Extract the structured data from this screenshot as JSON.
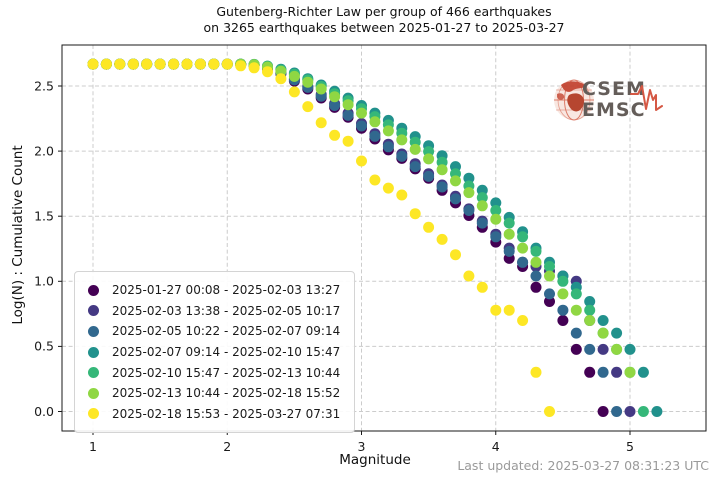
{
  "title": {
    "line1": "Gutenberg-Richter Law per group of 466 earthquakes",
    "line2": "on 3265 earthquakes between 2025-01-27 to 2025-03-27"
  },
  "axes": {
    "xlabel": "Magnitude",
    "ylabel": "Log(N) : Cumulative Count"
  },
  "footer": {
    "last_updated": "Last updated: 2025-03-27 08:31:23 UTC"
  },
  "logo": {
    "top": "CSEM",
    "bottom": "EMSC",
    "accent_color": "#d24a35",
    "text_color": "#57504c"
  },
  "chart_data": {
    "type": "scatter",
    "title": "Gutenberg-Richter Law per group of 466 earthquakes on 3265 earthquakes between 2025-01-27 to 2025-03-27",
    "xlabel": "Magnitude",
    "ylabel": "Log(N) : Cumulative Count",
    "xlim": [
      0.77,
      5.57
    ],
    "ylim": [
      -0.15,
      2.82
    ],
    "x_ticks": [
      1,
      2,
      3,
      4,
      5
    ],
    "y_ticks": [
      0.0,
      0.5,
      1.0,
      1.5,
      2.0,
      2.5
    ],
    "grid": true,
    "legend_position": "lower left",
    "marker_diameter_px": 11,
    "group_size": 466,
    "log10_group_size": 2.668,
    "series": [
      {
        "label": "2025-01-27 00:08 - 2025-02-03 13:27",
        "color": "#440154",
        "flat": {
          "from": 1.0,
          "to": 2.0,
          "step": 0.1,
          "value": 2.668
        },
        "points": [
          [
            2.1,
            2.667
          ],
          [
            2.2,
            2.658
          ],
          [
            2.3,
            2.633
          ],
          [
            2.4,
            2.593
          ],
          [
            2.5,
            2.538
          ],
          [
            2.6,
            2.477
          ],
          [
            2.7,
            2.408
          ],
          [
            2.8,
            2.336
          ],
          [
            2.9,
            2.26
          ],
          [
            3.0,
            2.176
          ],
          [
            3.1,
            2.093
          ],
          [
            3.2,
            2.009
          ],
          [
            3.3,
            1.944
          ],
          [
            3.4,
            1.863
          ],
          [
            3.5,
            1.792
          ],
          [
            3.6,
            1.699
          ],
          [
            3.7,
            1.602
          ],
          [
            3.8,
            1.505
          ],
          [
            3.9,
            1.415
          ],
          [
            4.0,
            1.301
          ],
          [
            4.1,
            1.176
          ],
          [
            4.2,
            1.114
          ],
          [
            4.3,
            0.954
          ],
          [
            4.4,
            0.845
          ],
          [
            4.5,
            0.699
          ],
          [
            4.6,
            0.477
          ],
          [
            4.7,
            0.301
          ],
          [
            4.8,
            0.0
          ]
        ]
      },
      {
        "label": "2025-02-03 13:38 - 2025-02-05 10:17",
        "color": "#443983",
        "flat": {
          "from": 1.0,
          "to": 2.0,
          "step": 0.1,
          "value": 2.668
        },
        "points": [
          [
            2.1,
            2.667
          ],
          [
            2.2,
            2.661
          ],
          [
            2.3,
            2.641
          ],
          [
            2.4,
            2.602
          ],
          [
            2.5,
            2.554
          ],
          [
            2.6,
            2.498
          ],
          [
            2.7,
            2.435
          ],
          [
            2.8,
            2.365
          ],
          [
            2.9,
            2.292
          ],
          [
            3.0,
            2.212
          ],
          [
            3.1,
            2.134
          ],
          [
            3.2,
            2.053
          ],
          [
            3.3,
            1.978
          ],
          [
            3.4,
            1.903
          ],
          [
            3.5,
            1.826
          ],
          [
            3.6,
            1.74
          ],
          [
            3.7,
            1.653
          ],
          [
            3.8,
            1.556
          ],
          [
            3.9,
            1.462
          ],
          [
            4.0,
            1.362
          ],
          [
            4.1,
            1.255
          ],
          [
            4.2,
            1.146
          ],
          [
            4.3,
            1.114
          ],
          [
            4.4,
            1.079
          ],
          [
            4.5,
            1.041
          ],
          [
            4.6,
            1.0
          ],
          [
            4.7,
            0.699
          ],
          [
            4.8,
            0.477
          ],
          [
            4.9,
            0.301
          ],
          [
            5.0,
            0.0
          ]
        ]
      },
      {
        "label": "2025-02-05 10:22 - 2025-02-07 09:14",
        "color": "#31688e",
        "flat": {
          "from": 1.0,
          "to": 2.0,
          "step": 0.1,
          "value": 2.668
        },
        "points": [
          [
            2.1,
            2.667
          ],
          [
            2.2,
            2.66
          ],
          [
            2.3,
            2.637
          ],
          [
            2.4,
            2.6
          ],
          [
            2.5,
            2.547
          ],
          [
            2.6,
            2.489
          ],
          [
            2.7,
            2.422
          ],
          [
            2.8,
            2.35
          ],
          [
            2.9,
            2.274
          ],
          [
            3.0,
            2.193
          ],
          [
            3.1,
            2.114
          ],
          [
            3.2,
            2.033
          ],
          [
            3.3,
            1.959
          ],
          [
            3.4,
            1.881
          ],
          [
            3.5,
            1.806
          ],
          [
            3.6,
            1.724
          ],
          [
            3.7,
            1.633
          ],
          [
            3.8,
            1.544
          ],
          [
            3.9,
            1.447
          ],
          [
            4.0,
            1.342
          ],
          [
            4.1,
            1.23
          ],
          [
            4.2,
            1.146
          ],
          [
            4.3,
            1.041
          ],
          [
            4.4,
            0.903
          ],
          [
            4.5,
            0.778
          ],
          [
            4.6,
            0.602
          ],
          [
            4.7,
            0.477
          ],
          [
            4.8,
            0.301
          ],
          [
            4.9,
            0.0
          ]
        ]
      },
      {
        "label": "2025-02-07 09:14 - 2025-02-10 15:47",
        "color": "#21918c",
        "flat": {
          "from": 1.0,
          "to": 2.0,
          "step": 0.1,
          "value": 2.668
        },
        "points": [
          [
            2.1,
            2.668
          ],
          [
            2.2,
            2.665
          ],
          [
            2.3,
            2.653
          ],
          [
            2.4,
            2.628
          ],
          [
            2.5,
            2.6
          ],
          [
            2.6,
            2.556
          ],
          [
            2.7,
            2.508
          ],
          [
            2.8,
            2.459
          ],
          [
            2.9,
            2.407
          ],
          [
            3.0,
            2.35
          ],
          [
            3.1,
            2.292
          ],
          [
            3.2,
            2.236
          ],
          [
            3.3,
            2.176
          ],
          [
            3.4,
            2.111
          ],
          [
            3.5,
            2.041
          ],
          [
            3.6,
            1.964
          ],
          [
            3.7,
            1.881
          ],
          [
            3.8,
            1.792
          ],
          [
            3.9,
            1.699
          ],
          [
            4.0,
            1.602
          ],
          [
            4.1,
            1.491
          ],
          [
            4.2,
            1.38
          ],
          [
            4.3,
            1.255
          ],
          [
            4.4,
            1.146
          ],
          [
            4.5,
            1.041
          ],
          [
            4.6,
            0.954
          ],
          [
            4.7,
            0.845
          ],
          [
            4.8,
            0.699
          ],
          [
            4.9,
            0.602
          ],
          [
            5.0,
            0.477
          ],
          [
            5.1,
            0.301
          ],
          [
            5.2,
            0.0
          ]
        ]
      },
      {
        "label": "2025-02-10 15:47 - 2025-02-13 10:44",
        "color": "#35b779",
        "flat": {
          "from": 1.0,
          "to": 2.0,
          "step": 0.1,
          "value": 2.668
        },
        "points": [
          [
            2.1,
            2.668
          ],
          [
            2.2,
            2.666
          ],
          [
            2.3,
            2.651
          ],
          [
            2.4,
            2.623
          ],
          [
            2.5,
            2.591
          ],
          [
            2.6,
            2.547
          ],
          [
            2.7,
            2.496
          ],
          [
            2.8,
            2.441
          ],
          [
            2.9,
            2.386
          ],
          [
            3.0,
            2.326
          ],
          [
            3.1,
            2.265
          ],
          [
            3.2,
            2.201
          ],
          [
            3.3,
            2.137
          ],
          [
            3.4,
            2.068
          ],
          [
            3.5,
            1.996
          ],
          [
            3.6,
            1.914
          ],
          [
            3.7,
            1.826
          ],
          [
            3.8,
            1.732
          ],
          [
            3.9,
            1.643
          ],
          [
            4.0,
            1.544
          ],
          [
            4.1,
            1.447
          ],
          [
            4.2,
            1.342
          ],
          [
            4.3,
            1.23
          ],
          [
            4.4,
            1.114
          ],
          [
            4.5,
            1.0
          ],
          [
            4.6,
            0.903
          ],
          [
            4.7,
            0.778
          ],
          [
            4.8,
            0.602
          ],
          [
            4.9,
            0.477
          ],
          [
            5.0,
            0.301
          ],
          [
            5.1,
            0.0
          ]
        ]
      },
      {
        "label": "2025-02-13 10:44 - 2025-02-18 15:52",
        "color": "#90d743",
        "flat": {
          "from": 1.0,
          "to": 2.0,
          "step": 0.1,
          "value": 2.668
        },
        "points": [
          [
            2.1,
            2.667
          ],
          [
            2.2,
            2.663
          ],
          [
            2.3,
            2.645
          ],
          [
            2.4,
            2.613
          ],
          [
            2.5,
            2.574
          ],
          [
            2.6,
            2.529
          ],
          [
            2.7,
            2.477
          ],
          [
            2.8,
            2.418
          ],
          [
            2.9,
            2.356
          ],
          [
            3.0,
            2.292
          ],
          [
            3.1,
            2.225
          ],
          [
            3.2,
            2.155
          ],
          [
            3.3,
            2.086
          ],
          [
            3.4,
            2.013
          ],
          [
            3.5,
            1.94
          ],
          [
            3.6,
            1.857
          ],
          [
            3.7,
            1.771
          ],
          [
            3.8,
            1.681
          ],
          [
            3.9,
            1.58
          ],
          [
            4.0,
            1.477
          ],
          [
            4.1,
            1.362
          ],
          [
            4.2,
            1.255
          ],
          [
            4.3,
            1.146
          ],
          [
            4.4,
            1.041
          ],
          [
            4.5,
            0.903
          ],
          [
            4.6,
            0.778
          ],
          [
            4.7,
            0.699
          ],
          [
            4.8,
            0.602
          ],
          [
            4.9,
            0.477
          ],
          [
            5.0,
            0.301
          ]
        ]
      },
      {
        "label": "2025-02-18 15:53 - 2025-03-27 07:31",
        "color": "#fde725",
        "flat": {
          "from": 1.0,
          "to": 2.0,
          "step": 0.1,
          "value": 2.668
        },
        "points": [
          [
            2.1,
            2.655
          ],
          [
            2.2,
            2.64
          ],
          [
            2.3,
            2.61
          ],
          [
            2.4,
            2.556
          ],
          [
            2.5,
            2.455
          ],
          [
            2.6,
            2.342
          ],
          [
            2.7,
            2.217
          ],
          [
            2.8,
            2.121
          ],
          [
            2.9,
            2.076
          ],
          [
            3.0,
            1.924
          ],
          [
            3.1,
            1.778
          ],
          [
            3.2,
            1.716
          ],
          [
            3.3,
            1.663
          ],
          [
            3.4,
            1.519
          ],
          [
            3.5,
            1.415
          ],
          [
            3.6,
            1.322
          ],
          [
            3.7,
            1.204
          ],
          [
            3.8,
            1.041
          ],
          [
            3.9,
            0.954
          ],
          [
            4.0,
            0.778
          ],
          [
            4.1,
            0.778
          ],
          [
            4.2,
            0.699
          ],
          [
            4.3,
            0.301
          ],
          [
            4.4,
            0.0
          ]
        ]
      }
    ]
  }
}
